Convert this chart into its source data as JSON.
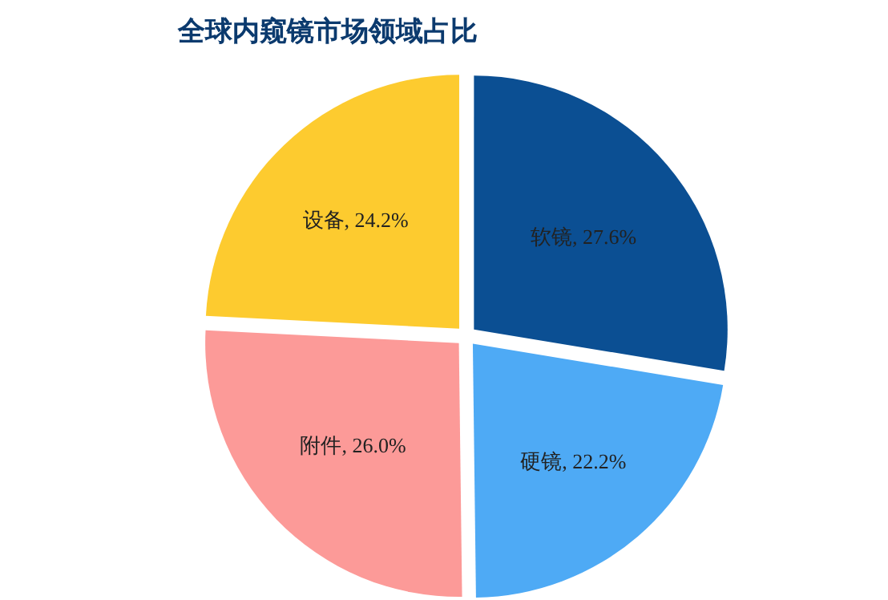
{
  "chart_data": {
    "type": "pie",
    "title": "全球内窥镜市场领域占比",
    "categories": [
      "软镜",
      "硬镜",
      "附件",
      "设备"
    ],
    "values": [
      27.6,
      22.2,
      26.0,
      24.2
    ],
    "value_labels": [
      "27.6%",
      "22.2%",
      "26.0%",
      "24.2%"
    ],
    "colors": [
      "#0b4f93",
      "#4eaaf5",
      "#fc9a98",
      "#fdcb2f"
    ],
    "legend": false
  }
}
